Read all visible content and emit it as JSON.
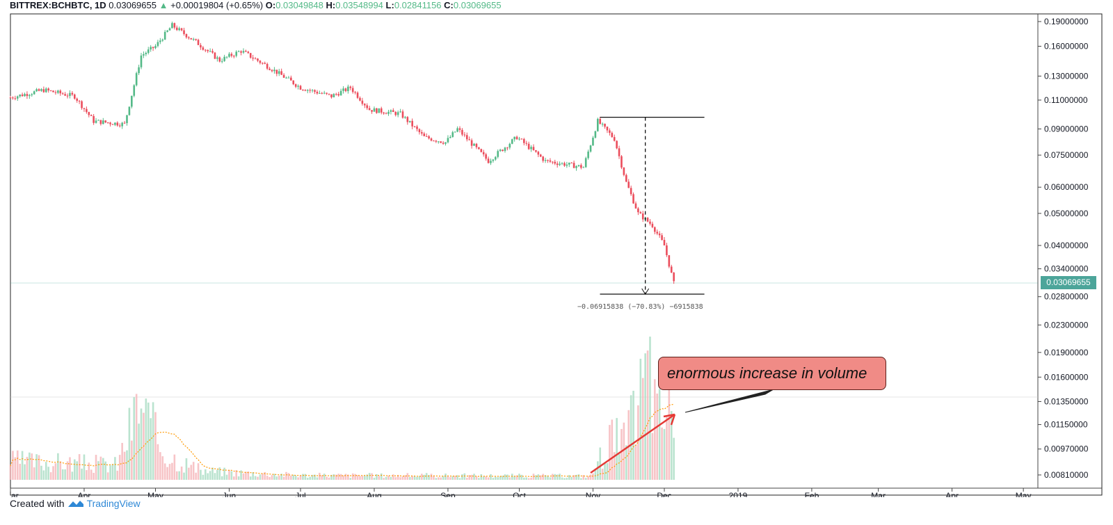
{
  "header": {
    "symbol": "BITTREX:BCHBTC, 1D",
    "price": "0.03069655",
    "arrow": "▲",
    "change": "+0.00019804 (+0.65%)",
    "o_label": "O:",
    "o_value": "0.03049848",
    "h_label": "H:",
    "h_value": "0.03548994",
    "l_label": "L:",
    "l_value": "0.02841156",
    "c_label": "C:",
    "c_value": "0.03069655"
  },
  "annotation": "enormous increase in volume",
  "last_price_label": "0.03069655",
  "measure_label": "−0.06915838 (−70.83%) −6915838",
  "footer": {
    "created_with": "Created with",
    "brand": "TradingView"
  },
  "colors": {
    "up": "#53b987",
    "down": "#eb4d5c",
    "ma": "#ff9800",
    "last_price": "#4ca59a"
  },
  "chart_data": {
    "type": "candlestick",
    "y_scale": "log",
    "y_ticks": [
      "0.19000000",
      "0.16000000",
      "0.13000000",
      "0.11000000",
      "0.09000000",
      "0.07500000",
      "0.06000000",
      "0.05000000",
      "0.04000000",
      "0.03400000",
      "0.02800000",
      "0.02300000",
      "0.01900000",
      "0.01600000",
      "0.01350000",
      "0.01150000",
      "0.00970000",
      "0.00810000"
    ],
    "x_ticks": [
      "ar",
      "Apr",
      "May",
      "Jun",
      "Jul",
      "Aug",
      "Sep",
      "Oct",
      "Nov",
      "Dec",
      "2019",
      "Feb",
      "Mar",
      "Apr",
      "May"
    ],
    "price_path": [
      {
        "date": "2018-03-01",
        "close": 0.112
      },
      {
        "date": "2018-03-15",
        "close": 0.118
      },
      {
        "date": "2018-03-28",
        "close": 0.113
      },
      {
        "date": "2018-04-05",
        "close": 0.095
      },
      {
        "date": "2018-04-18",
        "close": 0.093
      },
      {
        "date": "2018-04-25",
        "close": 0.15
      },
      {
        "date": "2018-05-01",
        "close": 0.16
      },
      {
        "date": "2018-05-08",
        "close": 0.185
      },
      {
        "date": "2018-05-18",
        "close": 0.165
      },
      {
        "date": "2018-05-28",
        "close": 0.145
      },
      {
        "date": "2018-06-06",
        "close": 0.155
      },
      {
        "date": "2018-06-18",
        "close": 0.138
      },
      {
        "date": "2018-07-01",
        "close": 0.12
      },
      {
        "date": "2018-07-14",
        "close": 0.113
      },
      {
        "date": "2018-07-22",
        "close": 0.12
      },
      {
        "date": "2018-07-30",
        "close": 0.103
      },
      {
        "date": "2018-08-12",
        "close": 0.1
      },
      {
        "date": "2018-08-22",
        "close": 0.085
      },
      {
        "date": "2018-08-31",
        "close": 0.082
      },
      {
        "date": "2018-09-05",
        "close": 0.09
      },
      {
        "date": "2018-09-18",
        "close": 0.072
      },
      {
        "date": "2018-09-30",
        "close": 0.085
      },
      {
        "date": "2018-10-12",
        "close": 0.072
      },
      {
        "date": "2018-10-28",
        "close": 0.069
      },
      {
        "date": "2018-11-03",
        "close": 0.095
      },
      {
        "date": "2018-11-10",
        "close": 0.084
      },
      {
        "date": "2018-11-15",
        "close": 0.062
      },
      {
        "date": "2018-11-20",
        "close": 0.05
      },
      {
        "date": "2018-11-26",
        "close": 0.046
      },
      {
        "date": "2018-12-01",
        "close": 0.04
      },
      {
        "date": "2018-12-05",
        "close": 0.0307
      }
    ],
    "volume_path": [
      {
        "date": "2018-03-01",
        "volume": 0.25
      },
      {
        "date": "2018-04-15",
        "volume": 0.2
      },
      {
        "date": "2018-04-24",
        "volume": 1.0
      },
      {
        "date": "2018-05-05",
        "volume": 0.35
      },
      {
        "date": "2018-05-20",
        "volume": 0.12
      },
      {
        "date": "2018-07-01",
        "volume": 0.06
      },
      {
        "date": "2018-10-31",
        "volume": 0.05
      },
      {
        "date": "2018-11-08",
        "volume": 0.55
      },
      {
        "date": "2018-11-15",
        "volume": 0.5
      },
      {
        "date": "2018-11-21",
        "volume": 1.15
      },
      {
        "date": "2018-11-25",
        "volume": 1.5
      },
      {
        "date": "2018-11-28",
        "volume": 0.8
      },
      {
        "date": "2018-12-02",
        "volume": 0.9
      },
      {
        "date": "2018-12-05",
        "volume": 1.05
      }
    ],
    "measure": {
      "from": 0.0976,
      "to": 0.0285
    }
  }
}
